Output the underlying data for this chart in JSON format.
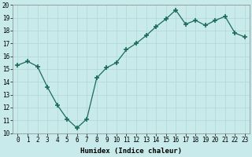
{
  "x": [
    0,
    1,
    2,
    3,
    4,
    5,
    6,
    7,
    8,
    9,
    10,
    11,
    12,
    13,
    14,
    15,
    16,
    17,
    18,
    19,
    20,
    21,
    22,
    23
  ],
  "y": [
    15.3,
    15.6,
    15.2,
    13.6,
    12.2,
    11.1,
    10.4,
    11.1,
    14.3,
    15.1,
    15.5,
    16.5,
    17.0,
    17.6,
    18.3,
    18.9,
    19.6,
    18.5,
    18.8,
    18.4,
    18.8,
    19.1,
    17.8,
    17.5
  ],
  "xlabel": "Humidex (Indice chaleur)",
  "ylim": [
    10,
    20
  ],
  "xlim_min": -0.5,
  "xlim_max": 23.5,
  "yticks": [
    10,
    11,
    12,
    13,
    14,
    15,
    16,
    17,
    18,
    19,
    20
  ],
  "xtick_labels": [
    "0",
    "1",
    "2",
    "3",
    "4",
    "5",
    "6",
    "7",
    "8",
    "9",
    "10",
    "11",
    "12",
    "13",
    "14",
    "15",
    "16",
    "17",
    "18",
    "19",
    "20",
    "21",
    "22",
    "23"
  ],
  "line_color": "#1a6b5a",
  "marker": "+",
  "bg_color": "#c8eaea",
  "grid_color": "#b0d8d4",
  "label_fontsize": 6.5,
  "tick_fontsize": 5.5
}
